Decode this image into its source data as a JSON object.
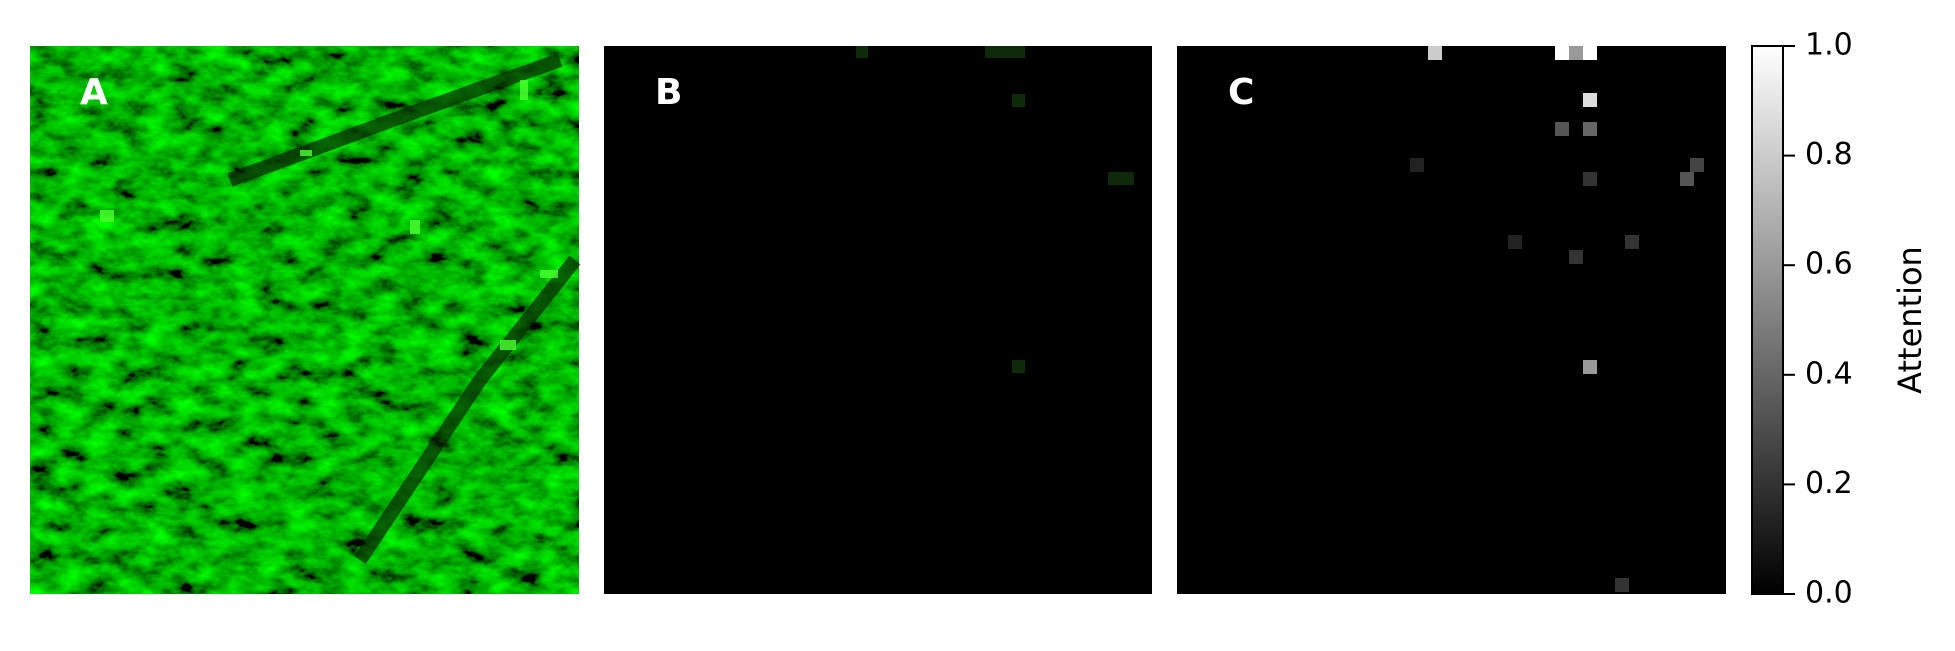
{
  "panels": [
    {
      "label": "A"
    },
    {
      "label": "B"
    },
    {
      "label": "C"
    }
  ],
  "colorbar": {
    "label": "Attention",
    "lim": [
      0,
      1
    ],
    "ticks": [
      {
        "value": 0,
        "label": "0.0"
      },
      0.2,
      0.4,
      0.6,
      0.8,
      {
        "value": 1,
        "label": "1.0"
      }
    ]
  }
}
